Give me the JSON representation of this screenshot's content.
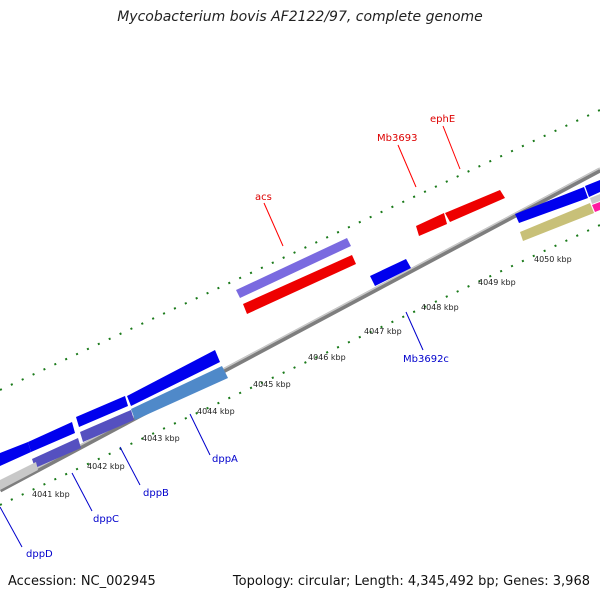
{
  "title": "Mycobacterium bovis AF2122/97, complete genome",
  "footer": {
    "accession": "Accession: NC_002945",
    "topology": "Topology: circular; Length: 4,345,492 bp; Genes: 3,968"
  },
  "colors": {
    "forward_gene": "#ff0000",
    "reverse_gene": "#0000ee",
    "purple_gene": "#7a6ae0",
    "steel_blue_gene": "#4f89c9",
    "gray_gene": "#c8c8c8",
    "olive_gene": "#c8c078",
    "tick": "#1a7a1a",
    "backbone": "#8a8a8a",
    "forward_label": "#dd0000",
    "reverse_label": "#0000cc"
  },
  "scale_labels": [
    "4041 kbp",
    "4042 kbp",
    "4043 kbp",
    "4044 kbp",
    "4045 kbp",
    "4046 kbp",
    "4047 kbp",
    "4048 kbp",
    "4049 kbp",
    "4050 kbp"
  ],
  "gene_labels": {
    "forward": [
      "acs",
      "Mb3693",
      "ephE"
    ],
    "reverse": [
      "Mb3692c",
      "dppA",
      "dppB",
      "dppC",
      "dppD"
    ]
  }
}
